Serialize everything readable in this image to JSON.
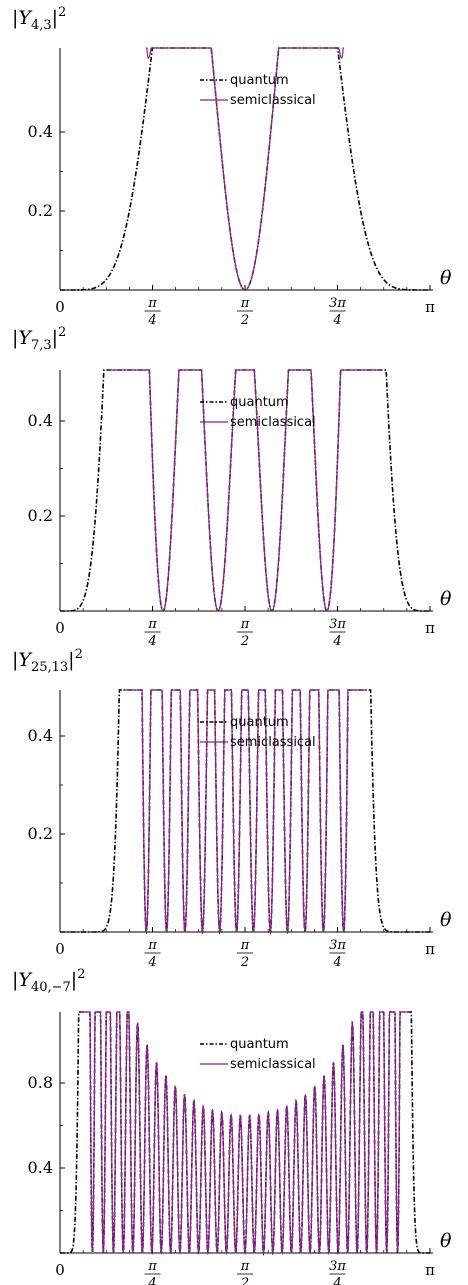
{
  "chart_data": [
    {
      "type": "line",
      "title": "|Y4,3|²",
      "title_base": "Y",
      "title_sub": "4,3",
      "l": 4,
      "m": 3,
      "xlabel": "θ",
      "xlim": [
        0,
        3.14159
      ],
      "ylim": [
        0,
        0.49
      ],
      "yticks": [
        0.2,
        0.4
      ],
      "ytick_labels": [
        "0.2",
        "0.4"
      ],
      "xtick_labels": [
        "0",
        "π/4",
        "π/2",
        "3π/4",
        "π"
      ],
      "grid": false,
      "legend_position": "top-center",
      "series": [
        {
          "name": "quantum",
          "style": "dash-dot",
          "color": "#000000"
        },
        {
          "name": "semiclassical",
          "style": "solid",
          "color": "#8e1f8e"
        }
      ]
    },
    {
      "type": "line",
      "title": "|Y7,3|²",
      "title_base": "Y",
      "title_sub": "7,3",
      "l": 7,
      "m": 3,
      "xlabel": "θ",
      "xlim": [
        0,
        3.14159
      ],
      "ylim": [
        0,
        0.49
      ],
      "yticks": [
        0.2,
        0.4
      ],
      "ytick_labels": [
        "0.2",
        "0.4"
      ],
      "xtick_labels": [
        "0",
        "π/4",
        "π/2",
        "3π/4",
        "π"
      ],
      "grid": false,
      "legend_position": "top-center",
      "series": [
        {
          "name": "quantum",
          "style": "dash-dot",
          "color": "#000000"
        },
        {
          "name": "semiclassical",
          "style": "solid",
          "color": "#8e1f8e"
        }
      ]
    },
    {
      "type": "line",
      "title": "|Y25,13|²",
      "title_base": "Y",
      "title_sub": "25,13",
      "l": 25,
      "m": 13,
      "xlabel": "θ",
      "xlim": [
        0,
        3.14159
      ],
      "ylim": [
        0,
        0.49
      ],
      "yticks": [
        0.2,
        0.4
      ],
      "ytick_labels": [
        "0.2",
        "0.4"
      ],
      "xtick_labels": [
        "0",
        "π/4",
        "π/2",
        "3π/4",
        "π"
      ],
      "grid": false,
      "legend_position": "top-center",
      "series": [
        {
          "name": "quantum",
          "style": "dash-dot",
          "color": "#000000"
        },
        {
          "name": "semiclassical",
          "style": "solid",
          "color": "#8e1f8e"
        }
      ]
    },
    {
      "type": "line",
      "title": "|Y40,−7|²",
      "title_base": "Y",
      "title_sub": "40,−7",
      "l": 40,
      "m": -7,
      "xlabel": "θ",
      "xlim": [
        0,
        3.14159
      ],
      "ylim": [
        0,
        0.9
      ],
      "yticks": [
        0.4,
        0.8
      ],
      "ytick_labels": [
        "0.4",
        "0.8"
      ],
      "xtick_labels": [
        "0",
        "π/4",
        "π/2",
        "3π/4",
        "π"
      ],
      "grid": false,
      "legend_position": "top-center",
      "series": [
        {
          "name": "quantum",
          "style": "dash-dot",
          "color": "#000000"
        },
        {
          "name": "semiclassical",
          "style": "solid",
          "color": "#8e1f8e"
        }
      ]
    }
  ]
}
